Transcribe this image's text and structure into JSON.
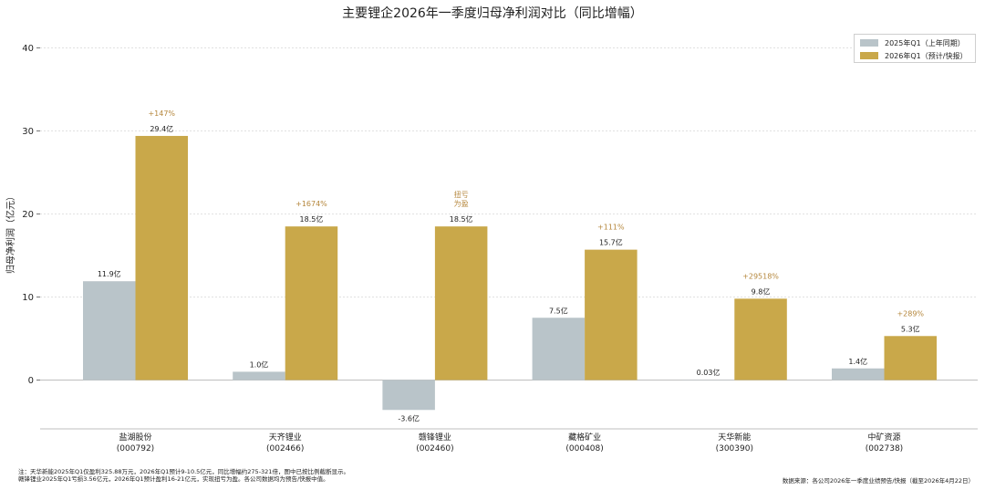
{
  "colors": {
    "prev": "#b9c4c9",
    "curr": "#c9a84a",
    "growth": "#b5873c"
  },
  "chart_data": {
    "type": "bar",
    "title": "主要锂企2026年一季度归母净利润对比（同比增幅）",
    "ylabel": "归母净利润（亿元）",
    "xlabel": "",
    "ylim": [
      -6,
      42
    ],
    "yticks": [
      0,
      10,
      20,
      30,
      40
    ],
    "grid": true,
    "legend_position": "top-right",
    "categories": [
      {
        "name": "盐湖股份",
        "code": "(000792)"
      },
      {
        "name": "天齐锂业",
        "code": "(002466)"
      },
      {
        "name": "赣锋锂业",
        "code": "(002460)"
      },
      {
        "name": "藏格矿业",
        "code": "(000408)"
      },
      {
        "name": "天华新能",
        "code": "(300390)"
      },
      {
        "name": "中矿资源",
        "code": "(002738)"
      }
    ],
    "series": [
      {
        "name": "2025年Q1（上年同期）",
        "values": [
          11.9,
          1.0,
          -3.6,
          7.5,
          0.03,
          1.4
        ],
        "labels": [
          "11.9亿",
          "1.0亿",
          "-3.6亿",
          "7.5亿",
          "0.03亿",
          "1.4亿"
        ]
      },
      {
        "name": "2026年Q1（预计/快报）",
        "values": [
          29.4,
          18.5,
          18.5,
          15.7,
          9.8,
          5.3
        ],
        "labels": [
          "29.4亿",
          "18.5亿",
          "18.5亿",
          "15.7亿",
          "9.8亿",
          "5.3亿"
        ]
      }
    ],
    "annotations": [
      "+147%",
      "+1674%",
      "扭亏\n为盈",
      "+111%",
      "+29518%",
      "+289%"
    ]
  },
  "footer": {
    "note_line1": "注：天华新能2025年Q1仅盈利325.88万元，2026年Q1预计9-10.5亿元，同比增幅约275-321倍，图中已按比例截断显示。",
    "note_line2": "赣锋锂业2025年Q1亏损3.56亿元，2026年Q1预计盈利16-21亿元，实现扭亏为盈。各公司数据均为预告/快报中值。",
    "source": "数据来源：各公司2026年一季度业绩预告/快报（截至2026年4月22日）"
  }
}
